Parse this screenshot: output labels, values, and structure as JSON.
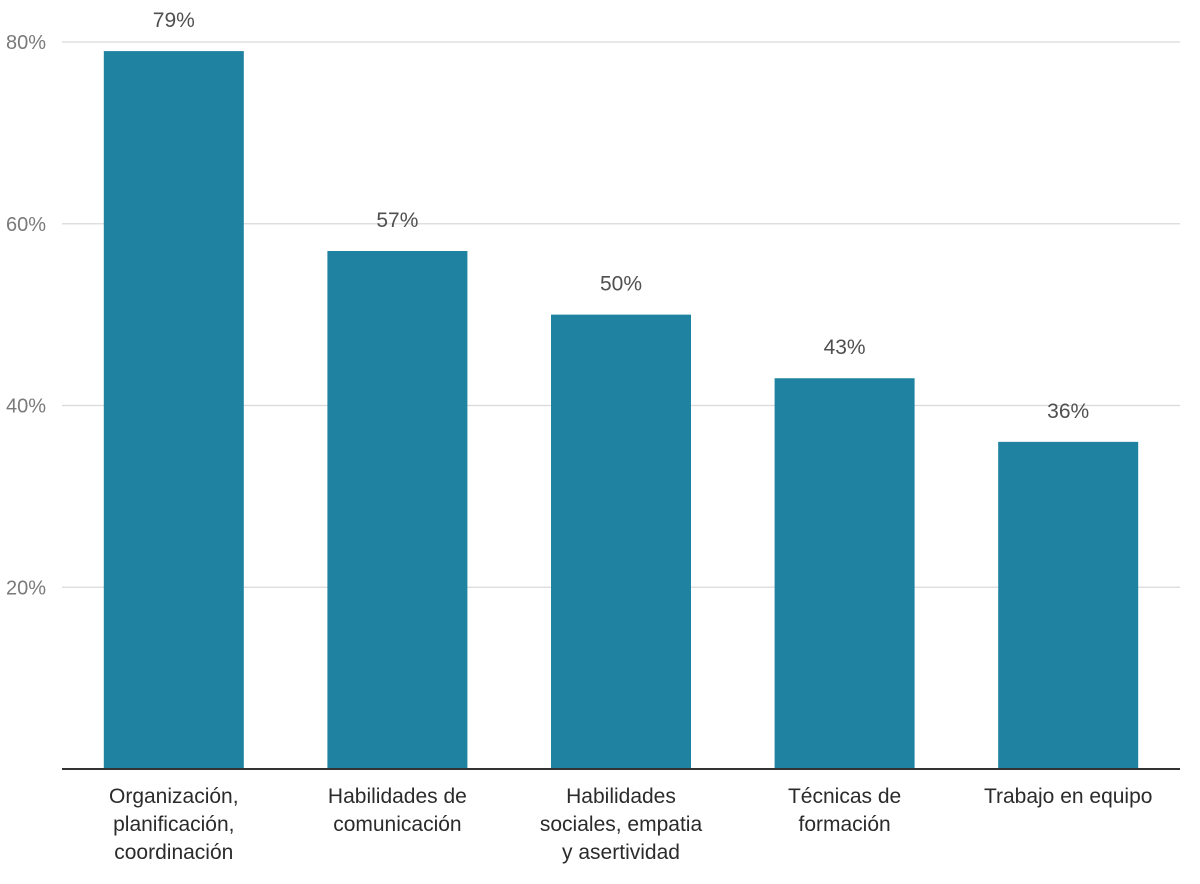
{
  "chart_data": {
    "type": "bar",
    "title": "",
    "xlabel": "",
    "ylabel": "",
    "categories": [
      [
        "Organización,",
        "planificación,",
        "coordinación"
      ],
      [
        "Habilidades de",
        "comunicación"
      ],
      [
        "Habilidades",
        "sociales, empatia",
        "y asertividad"
      ],
      [
        "Técnicas de",
        "formación"
      ],
      [
        "Trabajo en equipo"
      ]
    ],
    "values": [
      79,
      57,
      50,
      43,
      36
    ],
    "value_labels": [
      "79%",
      "57%",
      "50%",
      "43%",
      "36%"
    ],
    "ylim": [
      0,
      80
    ],
    "yticks": [
      20,
      40,
      60,
      80
    ],
    "ytick_labels": [
      "20%",
      "40%",
      "60%",
      "80%"
    ],
    "grid": true,
    "legend": "none",
    "colors": {
      "bar": "#1f82a1",
      "grid": "#d9d9d9",
      "axis": "#333333"
    }
  }
}
